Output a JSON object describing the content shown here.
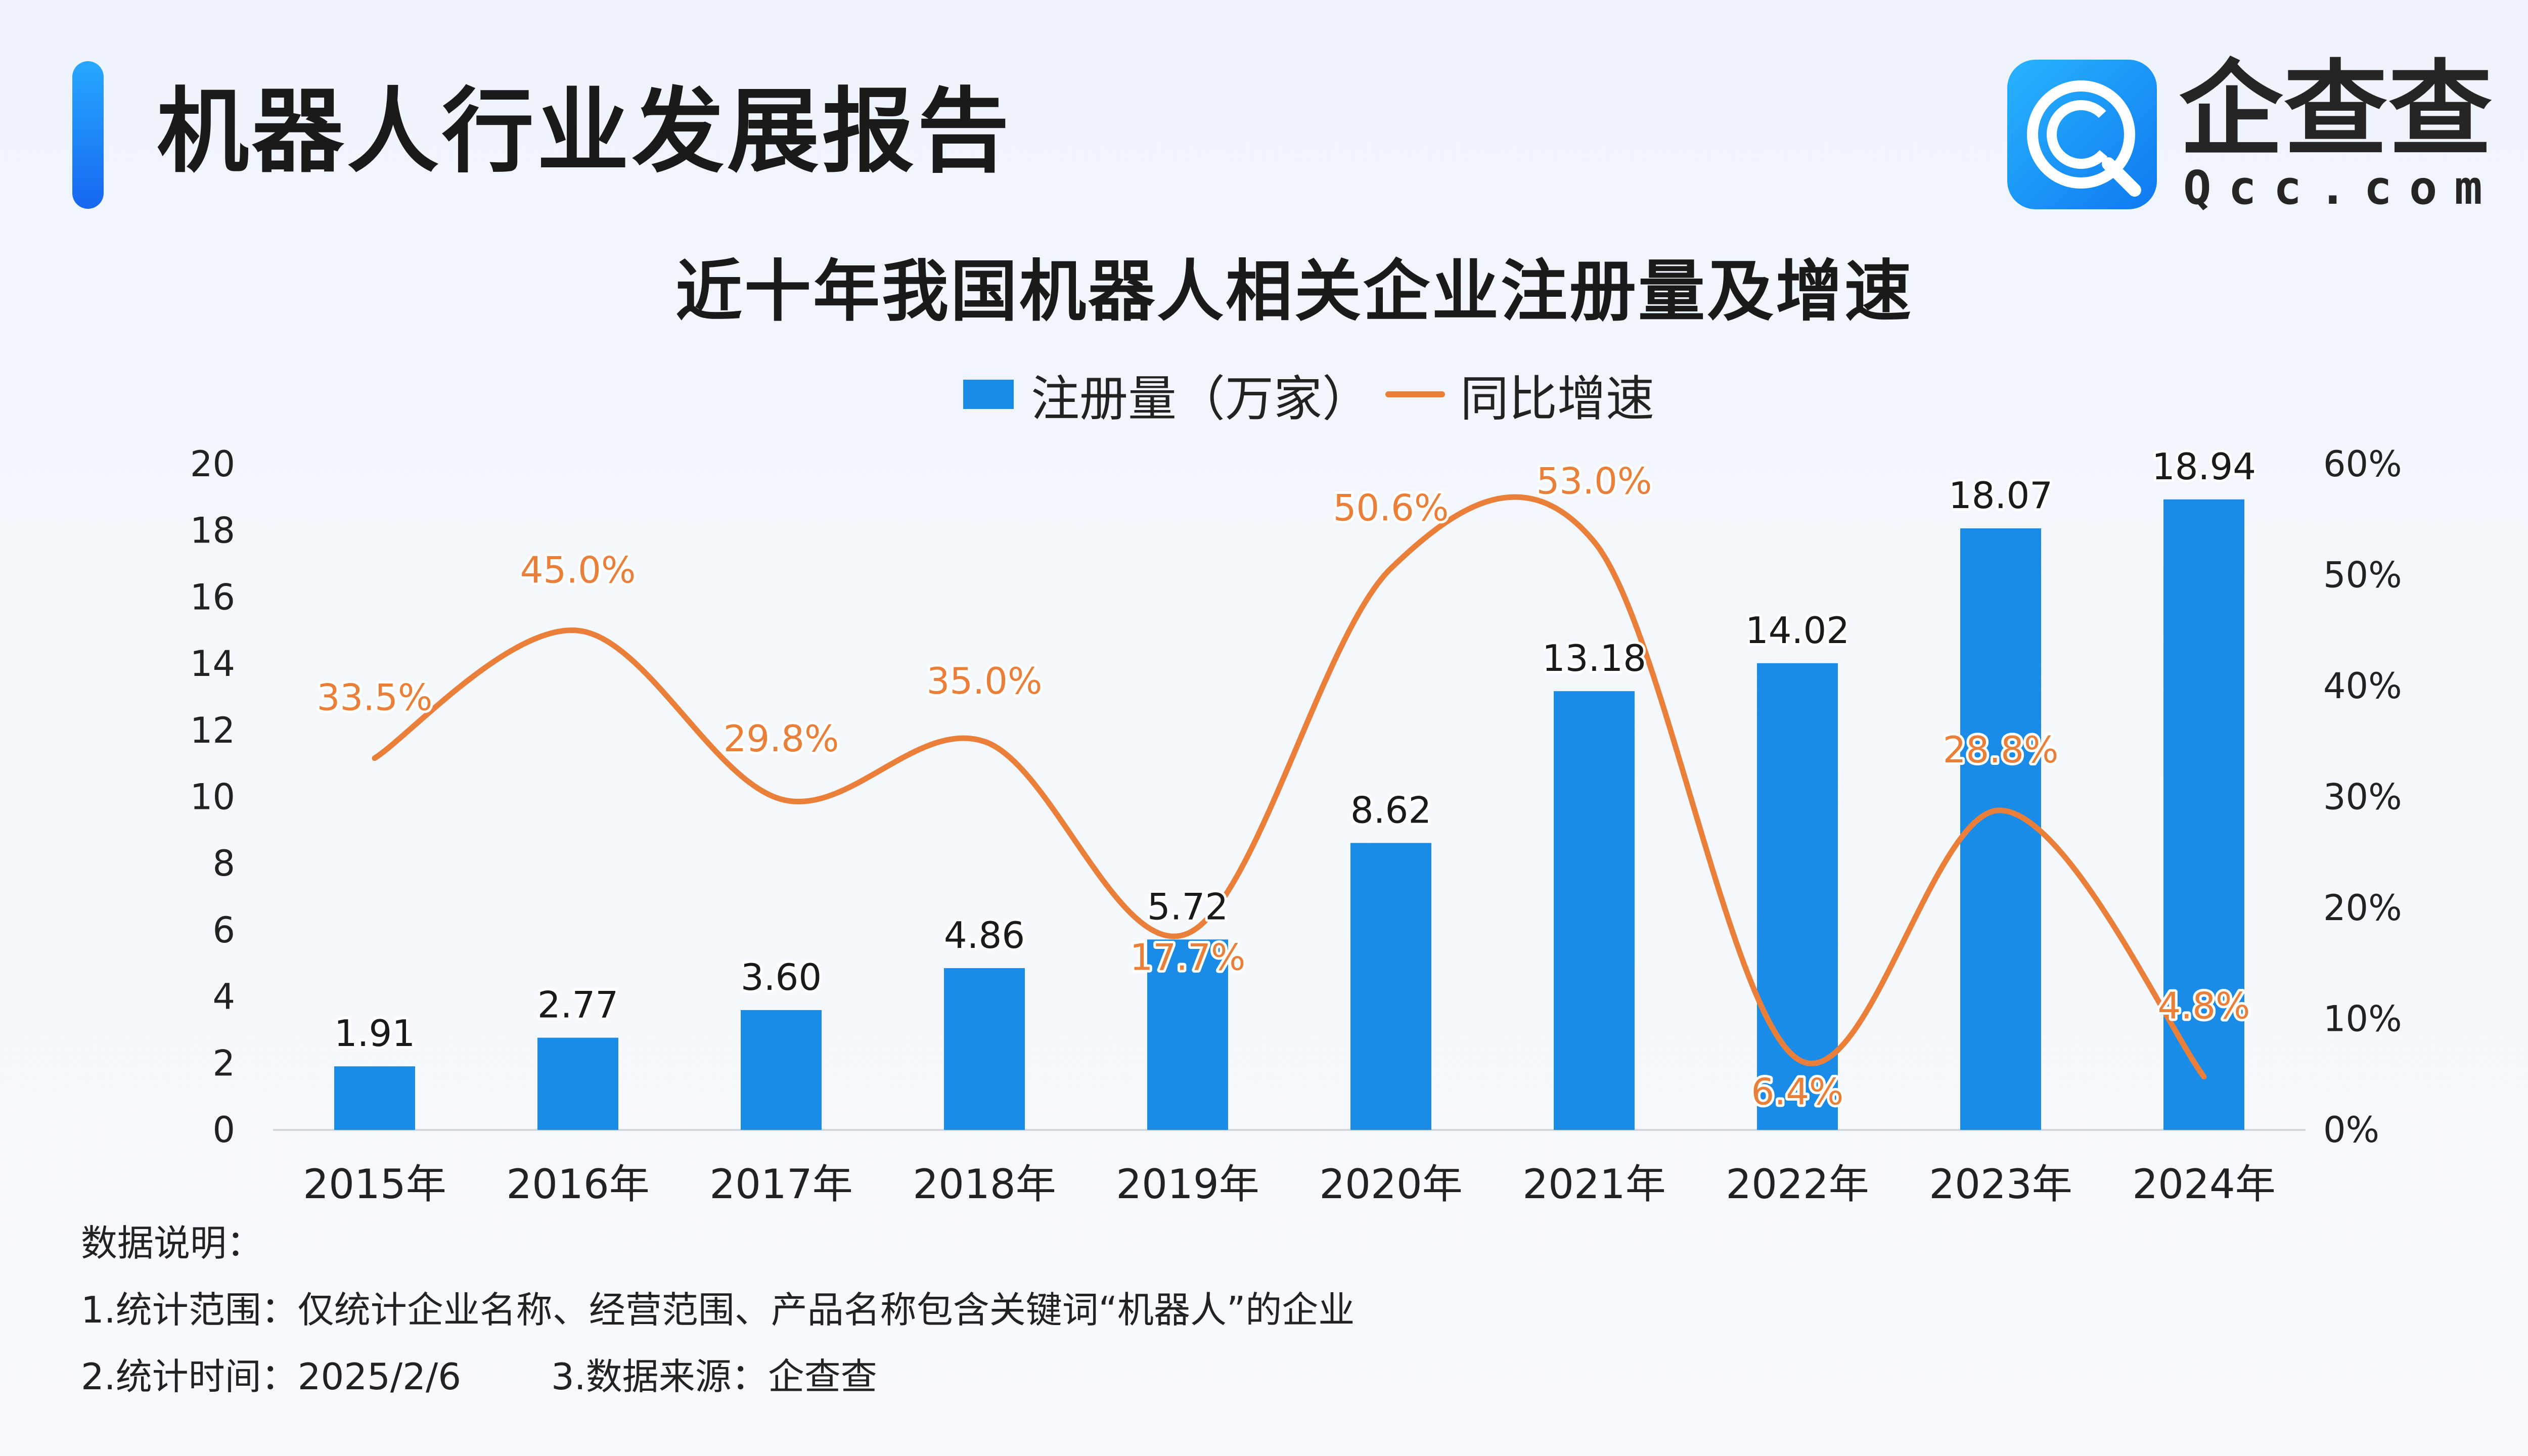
{
  "header": {
    "title": "机器人行业发展报告"
  },
  "logo": {
    "name": "企查查",
    "domain": "Qcc.com"
  },
  "chart_data": {
    "type": "bar",
    "title": "近十年我国机器人相关企业注册量及增速",
    "categories": [
      "2015年",
      "2016年",
      "2017年",
      "2018年",
      "2019年",
      "2020年",
      "2021年",
      "2022年",
      "2023年",
      "2024年"
    ],
    "series": [
      {
        "name": "注册量（万家）",
        "type": "bar",
        "axis": "left",
        "values": [
          1.91,
          2.77,
          3.6,
          4.86,
          5.72,
          8.62,
          13.18,
          14.02,
          18.07,
          18.94
        ],
        "labels": [
          "1.91",
          "2.77",
          "3.60",
          "4.86",
          "5.72",
          "8.62",
          "13.18",
          "14.02",
          "18.07",
          "18.94"
        ],
        "color": "#1a8ce8"
      },
      {
        "name": "同比增速",
        "type": "line",
        "axis": "right",
        "values": [
          33.5,
          45.0,
          29.8,
          35.0,
          17.7,
          50.6,
          53.0,
          6.4,
          28.8,
          4.8
        ],
        "labels": [
          "33.5%",
          "45.0%",
          "29.8%",
          "35.0%",
          "17.7%",
          "50.6%",
          "53.0%",
          "6.4%",
          "28.8%",
          "4.8%"
        ],
        "color": "#ea7f3a"
      }
    ],
    "ylim_left": [
      0,
      20
    ],
    "ylim_right": [
      0,
      60
    ],
    "left_ticks": [
      "0",
      "2",
      "4",
      "6",
      "8",
      "10",
      "12",
      "14",
      "16",
      "18",
      "20"
    ],
    "right_ticks": [
      "0%",
      "10%",
      "20%",
      "30%",
      "40%",
      "50%",
      "60%"
    ],
    "legend_position": "top-center",
    "grid": false
  },
  "notes": {
    "heading": "数据说明：",
    "line1": "1.统计范围：仅统计企业名称、经营范围、产品名称包含关键词“机器人”的企业",
    "line2_time": "2.统计时间：2025/2/6",
    "line2_source": "3.数据来源：企查查"
  }
}
